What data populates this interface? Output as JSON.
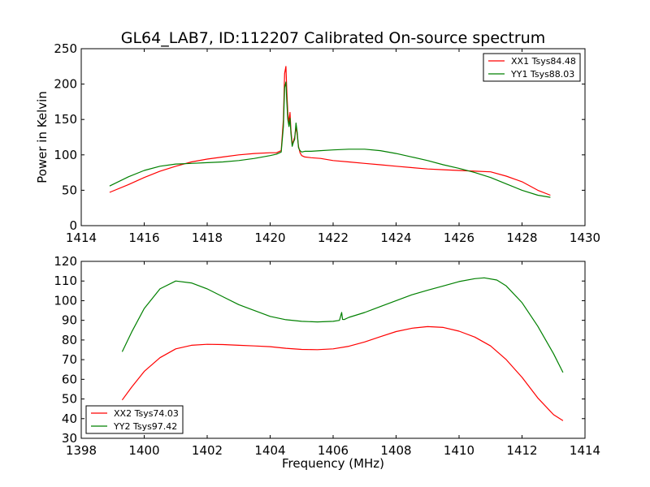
{
  "title": "GL64_LAB7, ID:112207 Calibrated On-source spectrum",
  "colors": {
    "XX": "#ff0000",
    "YY": "#008000",
    "axes": "#000000"
  },
  "chart_data": [
    {
      "type": "line",
      "title": "GL64_LAB7, ID:112207 Calibrated On-source spectrum",
      "xlabel": "",
      "ylabel": "Power in Kelvin",
      "xlim": [
        1414,
        1430
      ],
      "ylim": [
        0,
        250
      ],
      "xticks": [
        "1414",
        "1416",
        "1418",
        "1420",
        "1422",
        "1424",
        "1426",
        "1428",
        "1430"
      ],
      "yticks": [
        "0",
        "50",
        "100",
        "150",
        "200",
        "250"
      ],
      "grid": false,
      "legend_position": "upper-right",
      "series": [
        {
          "name": "XX1 Tsys84.48",
          "color": "#ff0000",
          "x": [
            1414.9,
            1415.5,
            1416.0,
            1416.5,
            1417.0,
            1417.5,
            1418.0,
            1418.5,
            1419.0,
            1419.5,
            1420.0,
            1420.2,
            1420.35,
            1420.42,
            1420.46,
            1420.5,
            1420.53,
            1420.56,
            1420.6,
            1420.63,
            1420.66,
            1420.7,
            1420.74,
            1420.78,
            1420.82,
            1420.86,
            1420.9,
            1420.95,
            1421.0,
            1421.1,
            1421.3,
            1421.6,
            1422.0,
            1422.5,
            1423.0,
            1423.5,
            1424.0,
            1424.5,
            1425.0,
            1425.5,
            1426.0,
            1426.5,
            1427.0,
            1427.5,
            1428.0,
            1428.5,
            1428.9
          ],
          "y": [
            47,
            58,
            68,
            77,
            84,
            90,
            94,
            97,
            100,
            102,
            103,
            103,
            106,
            150,
            215,
            225,
            190,
            160,
            145,
            160,
            135,
            115,
            120,
            125,
            140,
            128,
            112,
            103,
            99,
            97,
            96,
            95,
            92,
            90,
            88,
            86,
            84,
            82,
            80,
            79,
            78,
            77,
            76,
            70,
            62,
            50,
            43
          ]
        },
        {
          "name": "YY1 Tsys88.03",
          "color": "#008000",
          "x": [
            1414.9,
            1415.5,
            1416.0,
            1416.5,
            1417.0,
            1417.5,
            1418.0,
            1418.5,
            1419.0,
            1419.5,
            1420.0,
            1420.2,
            1420.35,
            1420.42,
            1420.46,
            1420.5,
            1420.53,
            1420.56,
            1420.6,
            1420.63,
            1420.66,
            1420.7,
            1420.74,
            1420.78,
            1420.82,
            1420.86,
            1420.9,
            1420.95,
            1421.0,
            1421.1,
            1421.3,
            1421.6,
            1422.0,
            1422.5,
            1423.0,
            1423.5,
            1424.0,
            1424.5,
            1425.0,
            1425.5,
            1426.0,
            1426.5,
            1427.0,
            1427.5,
            1428.0,
            1428.5,
            1428.9
          ],
          "y": [
            56,
            69,
            78,
            84,
            87,
            88,
            89,
            90,
            92,
            95,
            99,
            101,
            104,
            140,
            195,
            203,
            175,
            150,
            140,
            152,
            130,
            112,
            118,
            122,
            145,
            132,
            110,
            106,
            104,
            105,
            105,
            106,
            107,
            108,
            108,
            106,
            102,
            97,
            92,
            86,
            81,
            75,
            68,
            59,
            50,
            43,
            40
          ]
        }
      ]
    },
    {
      "type": "line",
      "title": "",
      "xlabel": "Frequency (MHz)",
      "ylabel": "",
      "xlim": [
        1398,
        1414
      ],
      "ylim": [
        30,
        120
      ],
      "xticks": [
        "1398",
        "1400",
        "1402",
        "1404",
        "1406",
        "1408",
        "1410",
        "1412",
        "1414"
      ],
      "yticks": [
        "30",
        "40",
        "50",
        "60",
        "70",
        "80",
        "90",
        "100",
        "110",
        "120"
      ],
      "grid": false,
      "legend_position": "lower-left",
      "series": [
        {
          "name": "XX2 Tsys74.03",
          "color": "#ff0000",
          "x": [
            1399.3,
            1399.6,
            1400.0,
            1400.5,
            1401.0,
            1401.5,
            1402.0,
            1402.5,
            1403.0,
            1403.5,
            1404.0,
            1404.5,
            1405.0,
            1405.5,
            1406.0,
            1406.5,
            1407.0,
            1407.5,
            1408.0,
            1408.5,
            1409.0,
            1409.5,
            1410.0,
            1410.5,
            1411.0,
            1411.5,
            1412.0,
            1412.5,
            1413.0,
            1413.3
          ],
          "y": [
            49.5,
            56,
            64,
            71,
            75.5,
            77.3,
            77.8,
            77.7,
            77.3,
            77,
            76.6,
            75.8,
            75.2,
            75.1,
            75.5,
            76.8,
            79,
            81.7,
            84.3,
            86,
            86.8,
            86.4,
            84.5,
            81.5,
            77,
            70,
            61,
            50.5,
            42,
            39
          ]
        },
        {
          "name": "YY2 Tsys97.42",
          "color": "#008000",
          "x": [
            1399.3,
            1399.6,
            1400.0,
            1400.5,
            1401.0,
            1401.5,
            1402.0,
            1402.5,
            1403.0,
            1403.5,
            1404.0,
            1404.5,
            1405.0,
            1405.5,
            1406.0,
            1406.2,
            1406.27,
            1406.3,
            1406.35,
            1406.5,
            1407.0,
            1407.5,
            1408.0,
            1408.5,
            1409.0,
            1409.5,
            1410.0,
            1410.5,
            1410.8,
            1411.2,
            1411.5,
            1412.0,
            1412.5,
            1413.0,
            1413.3
          ],
          "y": [
            74,
            84,
            96,
            106,
            110,
            109,
            106,
            102,
            98,
            95,
            92,
            90.3,
            89.5,
            89.2,
            89.5,
            90,
            94,
            90.5,
            90.4,
            91.5,
            94,
            97,
            100,
            103,
            105.3,
            107.5,
            109.7,
            111.2,
            111.6,
            110.5,
            107.5,
            99,
            87,
            73,
            63.5
          ]
        }
      ]
    }
  ]
}
